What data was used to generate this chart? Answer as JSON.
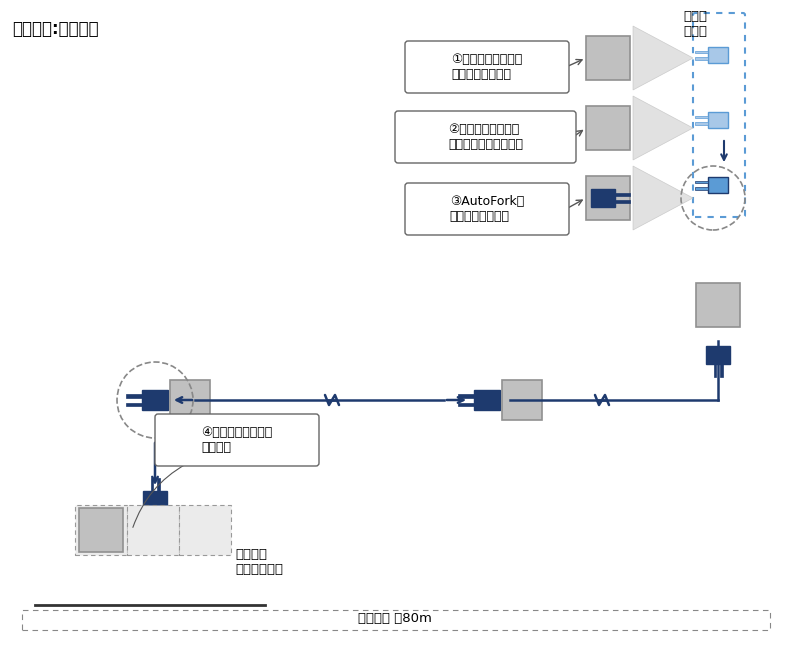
{
  "title": "【倉庫内:上面図】",
  "label1": "①不整列に置かれた\n　複数のパレット",
  "label2": "②車体側面のセンサ\n　によるパレット認識",
  "label3": "③AutoForkが\n　パレットを取得",
  "label4": "④指定位置へ搬送し\n整列配置",
  "label_staging": "仮置場\nエリア",
  "label_truck": "トラック\nバースエリア",
  "label_distance": "搬送距離 約80m",
  "dark_blue": "#1e3a6e",
  "light_blue": "#5b9bd5",
  "lighter_blue": "#a8c8e8",
  "gray_pallet": "#c0c0c0",
  "bg_color": "#ffffff"
}
